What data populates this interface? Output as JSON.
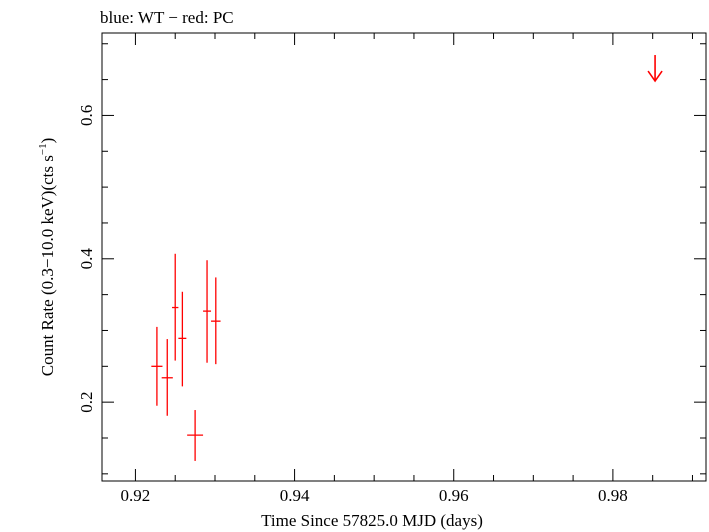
{
  "chart_data": {
    "type": "scatter",
    "title": "blue: WT − red: PC",
    "xlabel": "Time Since 57825.0 MJD (days)",
    "ylabel": "Count Rate (0.3−10.0 keV)(cts s",
    "ylabel_sup": "−1",
    "ylabel_end": ")",
    "xlim": [
      0.9158,
      0.9917
    ],
    "ylim": [
      0.09,
      0.715
    ],
    "x_ticks_major": [
      0.92,
      0.94,
      0.96,
      0.98
    ],
    "x_tick_labels": [
      "0.92",
      "0.94",
      "0.96",
      "0.98"
    ],
    "y_ticks_major": [
      0.2,
      0.4,
      0.6
    ],
    "y_tick_labels": [
      "0.2",
      "0.4",
      "0.6"
    ],
    "grid": false,
    "series": [
      {
        "name": "PC",
        "color": "#ff0000",
        "points": [
          {
            "x": 0.9227,
            "xerr": 0.0007,
            "y": 0.25,
            "ylo": 0.195,
            "yhi": 0.305
          },
          {
            "x": 0.924,
            "xerr": 0.0007,
            "y": 0.234,
            "ylo": 0.181,
            "yhi": 0.288
          },
          {
            "x": 0.925,
            "xerr": 0.0004,
            "y": 0.332,
            "ylo": 0.258,
            "yhi": 0.407
          },
          {
            "x": 0.9259,
            "xerr": 0.0005,
            "y": 0.289,
            "ylo": 0.222,
            "yhi": 0.354
          },
          {
            "x": 0.9275,
            "xerr": 0.001,
            "y": 0.154,
            "ylo": 0.118,
            "yhi": 0.189
          },
          {
            "x": 0.929,
            "xerr": 0.0005,
            "y": 0.327,
            "ylo": 0.255,
            "yhi": 0.398
          },
          {
            "x": 0.9301,
            "xerr": 0.0006,
            "y": 0.313,
            "ylo": 0.253,
            "yhi": 0.374
          }
        ],
        "upper_limits": [
          {
            "x": 0.9853,
            "y": 0.648
          }
        ]
      }
    ]
  }
}
